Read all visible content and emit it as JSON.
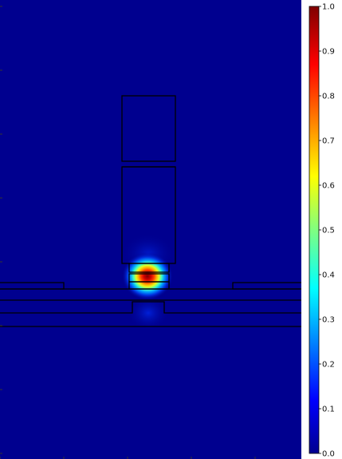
{
  "chart_data": {
    "type": "heatmap",
    "title": "",
    "xlabel": "",
    "ylabel": "",
    "colormap": "jet",
    "colorbar": {
      "range": [
        0.0,
        1.0
      ],
      "ticks": [
        0.0,
        0.1,
        0.2,
        0.3,
        0.4,
        0.5,
        0.6,
        0.7,
        0.8,
        0.9,
        1.0
      ],
      "tick_labels": [
        "0.0",
        "0.1",
        "0.2",
        "0.3",
        "0.4",
        "0.5",
        "0.6",
        "0.7",
        "0.8",
        "0.9",
        "1.0"
      ],
      "placement": "right"
    },
    "field_peak": {
      "value": 1.0,
      "background_value": 0.0
    },
    "colors": {
      "background": "#00008f",
      "structure_outline": "#000000"
    }
  }
}
